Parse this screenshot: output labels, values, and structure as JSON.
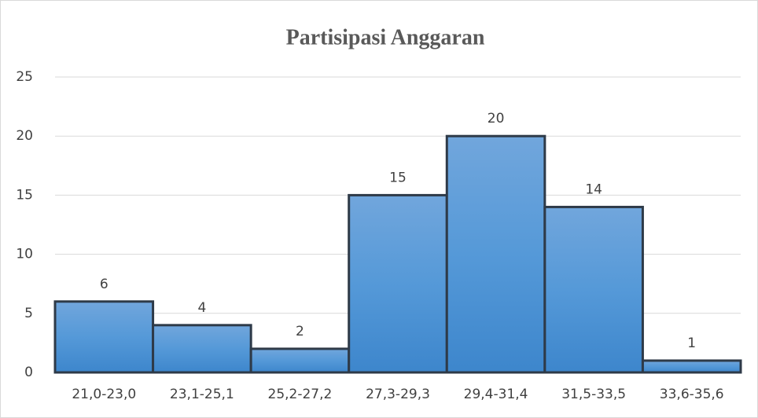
{
  "chart_data": {
    "type": "bar",
    "title": "Partisipasi Anggaran",
    "categories": [
      "21,0-23,0",
      "23,1-25,1",
      "25,2-27,2",
      "27,3-29,3",
      "29,4-31,4",
      "31,5-33,5",
      "33,6-35,6"
    ],
    "values": [
      6,
      4,
      2,
      15,
      20,
      14,
      1
    ],
    "color": "#5b9bd5",
    "ylim": [
      0,
      25
    ],
    "yticks": [
      0,
      5,
      10,
      15,
      20,
      25
    ],
    "grid": true
  }
}
